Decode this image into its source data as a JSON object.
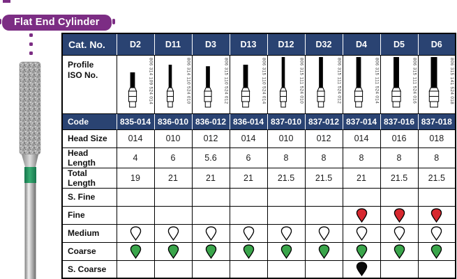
{
  "title": {
    "badge": "Flat End Cylinder"
  },
  "colors": {
    "navy": "#2a4372",
    "purple": "#7c2d84",
    "drop_red": "#d7282f",
    "drop_green": "#3aa54b",
    "drop_black": "#0a0a0a",
    "drop_white": "#ffffff",
    "band_green": "#2fa06a"
  },
  "table": {
    "corner_label": "Cat. No.",
    "profile_label_lines": [
      "Profile",
      "ISO No."
    ],
    "rows": [
      {
        "key": "code",
        "label": "Code",
        "kind": "navy"
      },
      {
        "key": "head_size",
        "label": "Head Size",
        "kind": "value"
      },
      {
        "key": "head_length",
        "label": "Head Length",
        "kind": "value"
      },
      {
        "key": "total_length",
        "label": "Total Length",
        "kind": "value"
      },
      {
        "key": "s_fine",
        "label": "S. Fine",
        "kind": "grit",
        "drop_color": "#ffffff"
      },
      {
        "key": "fine",
        "label": "Fine",
        "kind": "grit",
        "drop_color": "#d7282f"
      },
      {
        "key": "medium",
        "label": "Medium",
        "kind": "grit",
        "drop_color": "#ffffff"
      },
      {
        "key": "coarse",
        "label": "Coarse",
        "kind": "grit",
        "drop_color": "#3aa54b"
      },
      {
        "key": "s_coarse",
        "label": "S. Coarse",
        "kind": "grit",
        "drop_color": "#0a0a0a"
      }
    ],
    "columns": [
      {
        "cat": "D2",
        "iso": "806 314 109 524 014",
        "code": "835-014",
        "head_size": "014",
        "head_length": "4",
        "total_length": "19",
        "s_fine": false,
        "fine": false,
        "medium": true,
        "coarse": true,
        "s_coarse": false
      },
      {
        "cat": "D11",
        "iso": "806 314 110 524 010",
        "code": "836-010",
        "head_size": "010",
        "head_length": "6",
        "total_length": "21",
        "s_fine": false,
        "fine": false,
        "medium": true,
        "coarse": true,
        "s_coarse": false
      },
      {
        "cat": "D3",
        "iso": "806 315 110 524 012",
        "code": "836-012",
        "head_size": "012",
        "head_length": "5.6",
        "total_length": "21",
        "s_fine": false,
        "fine": false,
        "medium": true,
        "coarse": true,
        "s_coarse": false
      },
      {
        "cat": "D13",
        "iso": "806 315 110 524 014",
        "code": "836-014",
        "head_size": "014",
        "head_length": "6",
        "total_length": "21",
        "s_fine": false,
        "fine": false,
        "medium": true,
        "coarse": true,
        "s_coarse": false
      },
      {
        "cat": "D12",
        "iso": "806 315 111 524 010",
        "code": "837-010",
        "head_size": "010",
        "head_length": "8",
        "total_length": "21.5",
        "s_fine": false,
        "fine": false,
        "medium": true,
        "coarse": true,
        "s_coarse": false
      },
      {
        "cat": "D32",
        "iso": "806 315 111 524 012",
        "code": "837-012",
        "head_size": "012",
        "head_length": "8",
        "total_length": "21.5",
        "s_fine": false,
        "fine": false,
        "medium": true,
        "coarse": true,
        "s_coarse": false
      },
      {
        "cat": "D4",
        "iso": "806 315 111 524 014",
        "code": "837-014",
        "head_size": "014",
        "head_length": "8",
        "total_length": "21",
        "s_fine": false,
        "fine": true,
        "medium": true,
        "coarse": true,
        "s_coarse": true
      },
      {
        "cat": "D5",
        "iso": "806 315 111 524 016",
        "code": "837-016",
        "head_size": "016",
        "head_length": "8",
        "total_length": "21.5",
        "s_fine": false,
        "fine": true,
        "medium": true,
        "coarse": true,
        "s_coarse": false
      },
      {
        "cat": "D6",
        "iso": "806 315 141 524 018",
        "code": "837-018",
        "head_size": "018",
        "head_length": "8",
        "total_length": "21.5",
        "s_fine": false,
        "fine": true,
        "medium": true,
        "coarse": true,
        "s_coarse": false
      }
    ]
  }
}
